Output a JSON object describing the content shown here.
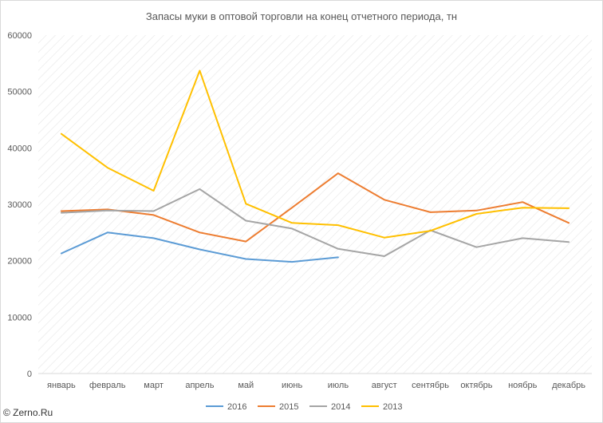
{
  "chart_data": {
    "type": "line",
    "title": "Запасы муки в оптовой торговли на конец отчетного периода, тн",
    "xlabel": "",
    "ylabel": "",
    "categories": [
      "январь",
      "февраль",
      "март",
      "апрель",
      "май",
      "июнь",
      "июль",
      "август",
      "сентябрь",
      "октябрь",
      "ноябрь",
      "декабрь"
    ],
    "ylim": [
      0,
      60000
    ],
    "yticks": [
      0,
      10000,
      20000,
      30000,
      40000,
      50000,
      60000
    ],
    "ytick_labels": [
      "0",
      "10000",
      "20000",
      "30000",
      "40000",
      "50000",
      "60000"
    ],
    "grid": "diagonal hatch background",
    "legend_position": "bottom",
    "series": [
      {
        "name": "2016",
        "color": "#5b9bd5",
        "values": [
          21300,
          25000,
          24000,
          22000,
          20300,
          19800,
          20600,
          null,
          null,
          null,
          null,
          null
        ]
      },
      {
        "name": "2015",
        "color": "#ed7d31",
        "values": [
          28800,
          29100,
          28100,
          25000,
          23400,
          29400,
          35500,
          30800,
          28600,
          28900,
          30400,
          26700
        ]
      },
      {
        "name": "2014",
        "color": "#a5a5a5",
        "values": [
          28500,
          28900,
          28800,
          32700,
          27100,
          25700,
          22100,
          20800,
          25400,
          22400,
          24000,
          23300
        ]
      },
      {
        "name": "2013",
        "color": "#ffc000",
        "values": [
          42500,
          36500,
          32400,
          53700,
          30100,
          26700,
          26300,
          24100,
          25300,
          28300,
          29400,
          29300
        ]
      }
    ]
  },
  "watermark": "© Zerno.Ru"
}
